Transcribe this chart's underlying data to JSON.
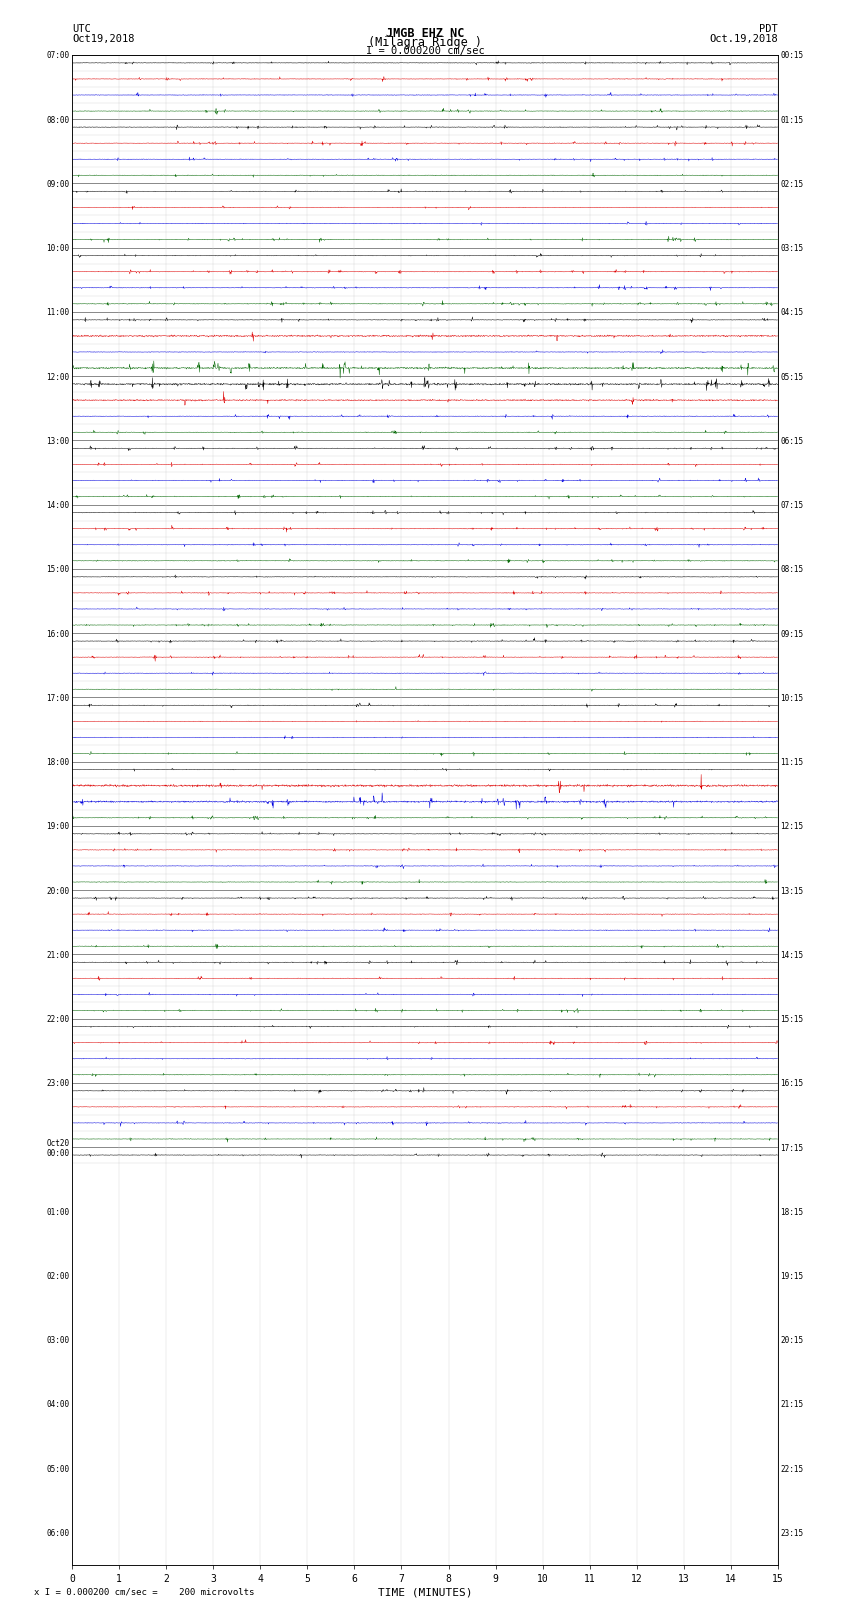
{
  "title_line1": "JMGB EHZ NC",
  "title_line2": "(Milagra Ridge )",
  "scale_label": "I = 0.000200 cm/sec",
  "left_label": "UTC",
  "left_date": "Oct19,2018",
  "right_label": "PDT",
  "right_date": "Oct.19,2018",
  "bottom_label": "TIME (MINUTES)",
  "bottom_note": "x I = 0.000200 cm/sec =    200 microvolts",
  "n_rows": 69,
  "n_cols": 15,
  "bg_color": "#ffffff",
  "grid_color_major": "#888888",
  "grid_color_minor": "#cccccc",
  "trace_black": "#000000",
  "trace_red": "#dd0000",
  "trace_blue": "#0000dd",
  "trace_green": "#006600",
  "left_times": [
    "07:00",
    "",
    "",
    "",
    "08:00",
    "",
    "",
    "",
    "09:00",
    "",
    "",
    "",
    "10:00",
    "",
    "",
    "",
    "11:00",
    "",
    "",
    "",
    "12:00",
    "",
    "",
    "",
    "13:00",
    "",
    "",
    "",
    "14:00",
    "",
    "",
    "",
    "15:00",
    "",
    "",
    "",
    "16:00",
    "",
    "",
    "",
    "17:00",
    "",
    "",
    "",
    "18:00",
    "",
    "",
    "",
    "19:00",
    "",
    "",
    "",
    "20:00",
    "",
    "",
    "",
    "21:00",
    "",
    "",
    "",
    "22:00",
    "",
    "",
    "",
    "23:00",
    "",
    "",
    "",
    "Oct20\n00:00",
    "",
    "",
    "",
    "01:00",
    "",
    "",
    "",
    "02:00",
    "",
    "",
    "",
    "03:00",
    "",
    "",
    "",
    "04:00",
    "",
    "",
    "",
    "05:00",
    "",
    "",
    "",
    "06:00",
    "",
    ""
  ],
  "right_times": [
    "00:15",
    "",
    "",
    "",
    "01:15",
    "",
    "",
    "",
    "02:15",
    "",
    "",
    "",
    "03:15",
    "",
    "",
    "",
    "04:15",
    "",
    "",
    "",
    "05:15",
    "",
    "",
    "",
    "06:15",
    "",
    "",
    "",
    "07:15",
    "",
    "",
    "",
    "08:15",
    "",
    "",
    "",
    "09:15",
    "",
    "",
    "",
    "10:15",
    "",
    "",
    "",
    "11:15",
    "",
    "",
    "",
    "12:15",
    "",
    "",
    "",
    "13:15",
    "",
    "",
    "",
    "14:15",
    "",
    "",
    "",
    "15:15",
    "",
    "",
    "",
    "16:15",
    "",
    "",
    "",
    "17:15",
    "",
    "",
    "",
    "18:15",
    "",
    "",
    "",
    "19:15",
    "",
    "",
    "",
    "20:15",
    "",
    "",
    "",
    "21:15",
    "",
    "",
    "",
    "22:15",
    "",
    "",
    "",
    "23:15",
    "",
    ""
  ],
  "row_colors": {
    "0": [
      "black",
      "red",
      "blue",
      "black"
    ],
    "4": [
      "black",
      "red",
      "blue",
      "black"
    ],
    "8": [
      "black",
      "red",
      "blue",
      "black"
    ],
    "12": [
      "black",
      "red",
      "blue",
      "black"
    ],
    "16": [
      "black",
      "red",
      "blue",
      "black"
    ],
    "20": [
      "black",
      "red",
      "blue",
      "black"
    ],
    "24": [
      "black",
      "red",
      "blue",
      "black"
    ],
    "28": [
      "black",
      "red",
      "blue",
      "black"
    ],
    "32": [
      "black",
      "red",
      "blue",
      "black"
    ],
    "36": [
      "black",
      "red",
      "blue",
      "black"
    ],
    "40": [
      "black",
      "red",
      "blue",
      "black"
    ],
    "44": [
      "black",
      "red",
      "blue",
      "black"
    ],
    "48": [
      "black",
      "red",
      "blue",
      "black"
    ],
    "52": [
      "black",
      "red",
      "blue",
      "black"
    ],
    "56": [
      "black",
      "red",
      "blue",
      "black"
    ],
    "60": [
      "black",
      "red",
      "blue",
      "black"
    ],
    "64": [
      "black",
      "red",
      "blue",
      "black"
    ],
    "68": [
      "black",
      "red",
      "blue",
      "black"
    ]
  }
}
